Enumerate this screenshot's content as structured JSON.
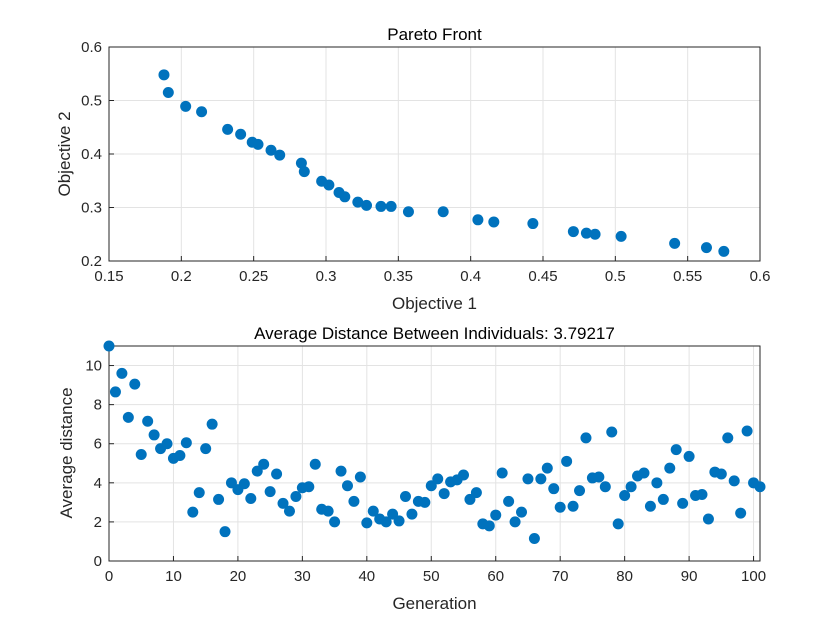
{
  "chart_data": [
    {
      "type": "scatter",
      "title": "Pareto Front",
      "xlabel": "Objective 1",
      "ylabel": "Objective 2",
      "xlim": [
        0.15,
        0.6
      ],
      "ylim": [
        0.2,
        0.6
      ],
      "grid": true,
      "marker_color": "#0072BD",
      "x_ticks": [
        {
          "value": 0.15,
          "label": "0.15"
        },
        {
          "value": 0.2,
          "label": "0.2"
        },
        {
          "value": 0.25,
          "label": "0.25"
        },
        {
          "value": 0.3,
          "label": "0.3"
        },
        {
          "value": 0.35,
          "label": "0.35"
        },
        {
          "value": 0.4,
          "label": "0.4"
        },
        {
          "value": 0.45,
          "label": "0.45"
        },
        {
          "value": 0.5,
          "label": "0.5"
        },
        {
          "value": 0.55,
          "label": "0.55"
        },
        {
          "value": 0.6,
          "label": "0.6"
        }
      ],
      "y_ticks": [
        {
          "value": 0.2,
          "label": "0.2"
        },
        {
          "value": 0.3,
          "label": "0.3"
        },
        {
          "value": 0.4,
          "label": "0.4"
        },
        {
          "value": 0.5,
          "label": "0.5"
        },
        {
          "value": 0.6,
          "label": "0.6"
        }
      ],
      "points": [
        [
          0.188,
          0.548
        ],
        [
          0.191,
          0.515
        ],
        [
          0.203,
          0.489
        ],
        [
          0.214,
          0.479
        ],
        [
          0.232,
          0.446
        ],
        [
          0.241,
          0.437
        ],
        [
          0.249,
          0.422
        ],
        [
          0.253,
          0.418
        ],
        [
          0.262,
          0.407
        ],
        [
          0.268,
          0.398
        ],
        [
          0.283,
          0.383
        ],
        [
          0.285,
          0.367
        ],
        [
          0.297,
          0.349
        ],
        [
          0.302,
          0.342
        ],
        [
          0.309,
          0.328
        ],
        [
          0.313,
          0.32
        ],
        [
          0.322,
          0.31
        ],
        [
          0.328,
          0.304
        ],
        [
          0.338,
          0.302
        ],
        [
          0.345,
          0.302
        ],
        [
          0.357,
          0.292
        ],
        [
          0.381,
          0.292
        ],
        [
          0.405,
          0.277
        ],
        [
          0.416,
          0.273
        ],
        [
          0.443,
          0.27
        ],
        [
          0.471,
          0.255
        ],
        [
          0.48,
          0.252
        ],
        [
          0.486,
          0.25
        ],
        [
          0.504,
          0.246
        ],
        [
          0.541,
          0.233
        ],
        [
          0.563,
          0.225
        ],
        [
          0.575,
          0.218
        ]
      ]
    },
    {
      "type": "scatter",
      "title": "Average Distance Between Individuals: 3.79217",
      "xlabel": "Generation",
      "ylabel": "Average distance",
      "xlim": [
        0,
        101
      ],
      "ylim": [
        0,
        11
      ],
      "grid": true,
      "marker_color": "#0072BD",
      "x_ticks": [
        {
          "value": 0,
          "label": "0"
        },
        {
          "value": 10,
          "label": "10"
        },
        {
          "value": 20,
          "label": "20"
        },
        {
          "value": 30,
          "label": "30"
        },
        {
          "value": 40,
          "label": "40"
        },
        {
          "value": 50,
          "label": "50"
        },
        {
          "value": 60,
          "label": "60"
        },
        {
          "value": 70,
          "label": "70"
        },
        {
          "value": 80,
          "label": "80"
        },
        {
          "value": 90,
          "label": "90"
        },
        {
          "value": 100,
          "label": "100"
        }
      ],
      "y_ticks": [
        {
          "value": 0,
          "label": "0"
        },
        {
          "value": 2,
          "label": "2"
        },
        {
          "value": 4,
          "label": "4"
        },
        {
          "value": 6,
          "label": "6"
        },
        {
          "value": 8,
          "label": "8"
        },
        {
          "value": 10,
          "label": "10"
        }
      ],
      "points": [
        [
          0,
          11.0
        ],
        [
          1,
          8.65
        ],
        [
          2,
          9.6
        ],
        [
          3,
          7.35
        ],
        [
          4,
          9.05
        ],
        [
          5,
          5.45
        ],
        [
          6,
          7.15
        ],
        [
          7,
          6.45
        ],
        [
          8,
          5.75
        ],
        [
          9,
          6.0
        ],
        [
          10,
          5.25
        ],
        [
          11,
          5.4
        ],
        [
          12,
          6.05
        ],
        [
          13,
          2.5
        ],
        [
          14,
          3.5
        ],
        [
          15,
          5.75
        ],
        [
          16,
          7.0
        ],
        [
          17,
          3.15
        ],
        [
          18,
          1.5
        ],
        [
          19,
          4.0
        ],
        [
          20,
          3.65
        ],
        [
          21,
          3.95
        ],
        [
          22,
          3.2
        ],
        [
          23,
          4.6
        ],
        [
          24,
          4.95
        ],
        [
          25,
          3.55
        ],
        [
          26,
          4.45
        ],
        [
          27,
          2.95
        ],
        [
          28,
          2.55
        ],
        [
          29,
          3.3
        ],
        [
          30,
          3.75
        ],
        [
          31,
          3.8
        ],
        [
          32,
          4.95
        ],
        [
          33,
          2.65
        ],
        [
          34,
          2.55
        ],
        [
          35,
          2.0
        ],
        [
          36,
          4.6
        ],
        [
          37,
          3.85
        ],
        [
          38,
          3.05
        ],
        [
          39,
          4.3
        ],
        [
          40,
          1.95
        ],
        [
          41,
          2.55
        ],
        [
          42,
          2.15
        ],
        [
          43,
          2.0
        ],
        [
          44,
          2.4
        ],
        [
          45,
          2.05
        ],
        [
          46,
          3.3
        ],
        [
          47,
          2.4
        ],
        [
          48,
          3.05
        ],
        [
          49,
          3.0
        ],
        [
          50,
          3.85
        ],
        [
          51,
          4.2
        ],
        [
          52,
          3.45
        ],
        [
          53,
          4.05
        ],
        [
          54,
          4.15
        ],
        [
          55,
          4.4
        ],
        [
          56,
          3.15
        ],
        [
          57,
          3.5
        ],
        [
          58,
          1.9
        ],
        [
          59,
          1.8
        ],
        [
          60,
          2.35
        ],
        [
          61,
          4.5
        ],
        [
          62,
          3.05
        ],
        [
          63,
          2.0
        ],
        [
          64,
          2.5
        ],
        [
          65,
          4.2
        ],
        [
          66,
          1.15
        ],
        [
          67,
          4.2
        ],
        [
          68,
          4.75
        ],
        [
          69,
          3.7
        ],
        [
          70,
          2.75
        ],
        [
          71,
          5.1
        ],
        [
          72,
          2.8
        ],
        [
          73,
          3.6
        ],
        [
          74,
          6.3
        ],
        [
          75,
          4.25
        ],
        [
          76,
          4.3
        ],
        [
          77,
          3.8
        ],
        [
          78,
          6.6
        ],
        [
          79,
          1.9
        ],
        [
          80,
          3.35
        ],
        [
          81,
          3.8
        ],
        [
          82,
          4.35
        ],
        [
          83,
          4.5
        ],
        [
          84,
          2.8
        ],
        [
          85,
          4.0
        ],
        [
          86,
          3.15
        ],
        [
          87,
          4.75
        ],
        [
          88,
          5.7
        ],
        [
          89,
          2.95
        ],
        [
          90,
          5.35
        ],
        [
          91,
          3.35
        ],
        [
          92,
          3.4
        ],
        [
          93,
          2.15
        ],
        [
          94,
          4.55
        ],
        [
          95,
          4.45
        ],
        [
          96,
          6.3
        ],
        [
          97,
          4.1
        ],
        [
          98,
          2.45
        ],
        [
          99,
          6.65
        ],
        [
          100,
          4.0
        ],
        [
          101,
          3.8
        ]
      ]
    }
  ]
}
